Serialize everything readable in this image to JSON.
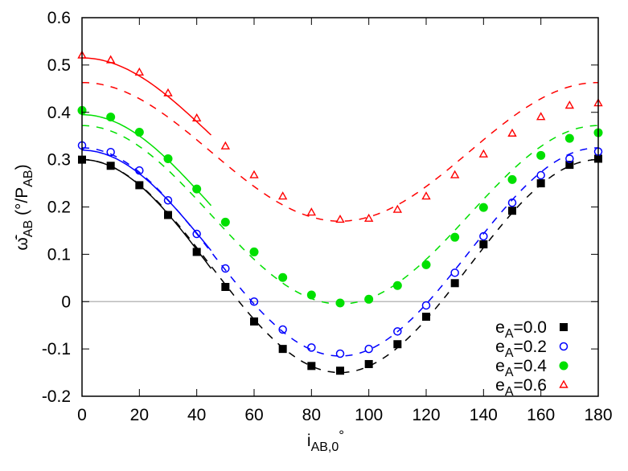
{
  "chart_data": {
    "type": "scatter",
    "title": "",
    "xlabel": "i_AB,0°",
    "ylabel": "ω̄̇_AB (°/P_AB)",
    "xlim": [
      0,
      180
    ],
    "ylim": [
      -0.2,
      0.6
    ],
    "xticks": [
      0,
      20,
      40,
      60,
      80,
      100,
      120,
      140,
      160,
      180
    ],
    "yticks": [
      -0.2,
      -0.1,
      0,
      0.1,
      0.2,
      0.3,
      0.4,
      0.5,
      0.6
    ],
    "xtick_labels": [
      "0",
      "20",
      "40",
      "60",
      "80",
      "100",
      "120",
      "140",
      "160",
      "180"
    ],
    "ytick_labels": [
      "-0.2",
      "-0.1",
      "0",
      "0.1",
      "0.2",
      "0.3",
      "0.4",
      "0.5",
      "0.6"
    ],
    "grid": false,
    "zero_line": true,
    "legend_position": "lower right",
    "x": [
      0,
      10,
      20,
      30,
      40,
      50,
      60,
      70,
      80,
      90,
      100,
      110,
      120,
      130,
      140,
      150,
      160,
      170,
      180
    ],
    "series": [
      {
        "name": "e_A=0.0",
        "label_main": "e",
        "label_sub": "A",
        "label_value": "=0.0",
        "color": "#000000",
        "marker": "filled-square",
        "values": [
          0.3,
          0.287,
          0.246,
          0.183,
          0.105,
          0.031,
          -0.042,
          -0.1,
          -0.136,
          -0.146,
          -0.132,
          -0.09,
          -0.032,
          0.039,
          0.121,
          0.192,
          0.25,
          0.289,
          0.302
        ],
        "dashed_model": {
          "offset": 0.075,
          "amplitude": 0.225
        },
        "solid_model": {
          "x_range": [
            0,
            45
          ],
          "y_at_0": 0.3
        }
      },
      {
        "name": "e_A=0.2",
        "label_main": "e",
        "label_sub": "A",
        "label_value": "=0.2",
        "color": "#0000ff",
        "marker": "open-circle",
        "values": [
          0.33,
          0.316,
          0.277,
          0.214,
          0.143,
          0.07,
          0.0,
          -0.059,
          -0.097,
          -0.11,
          -0.1,
          -0.063,
          -0.008,
          0.061,
          0.138,
          0.209,
          0.267,
          0.302,
          0.317
        ],
        "dashed_model": {
          "offset": 0.105,
          "amplitude": 0.22
        },
        "solid_model": {
          "x_range": [
            0,
            45
          ],
          "y_at_0": 0.32
        }
      },
      {
        "name": "e_A=0.4",
        "label_main": "e",
        "label_sub": "A",
        "label_value": "=0.4",
        "color": "#00e000",
        "marker": "filled-circle",
        "values": [
          0.404,
          0.39,
          0.358,
          0.302,
          0.238,
          0.168,
          0.105,
          0.051,
          0.014,
          -0.003,
          0.005,
          0.034,
          0.078,
          0.136,
          0.199,
          0.258,
          0.309,
          0.345,
          0.357
        ],
        "dashed_model": {
          "offset": 0.1835,
          "amplitude": 0.1885
        },
        "solid_model": {
          "x_range": [
            0,
            45
          ],
          "y_at_0": 0.395
        }
      },
      {
        "name": "e_A=0.6",
        "label_main": "e",
        "label_sub": "A",
        "label_value": "=0.6",
        "color": "#ff0000",
        "marker": "open-triangle",
        "values": [
          0.52,
          0.51,
          0.484,
          0.44,
          0.387,
          0.328,
          0.267,
          0.222,
          0.188,
          0.173,
          0.175,
          0.194,
          0.222,
          0.267,
          0.311,
          0.355,
          0.39,
          0.414,
          0.419
        ],
        "dashed_model": {
          "offset": 0.3165,
          "amplitude": 0.1465
        },
        "solid_model": {
          "x_range": [
            0,
            45
          ],
          "y_at_0": 0.515
        }
      }
    ]
  },
  "axes": {
    "xlabel_main": "i",
    "xlabel_sub": "AB,0",
    "xlabel_sup": "°",
    "ylabel_main": "ω̄̇",
    "ylabel_sub": "AB",
    "ylabel_rest": " (°/P",
    "ylabel_sub2": "AB",
    "ylabel_end": ")"
  }
}
